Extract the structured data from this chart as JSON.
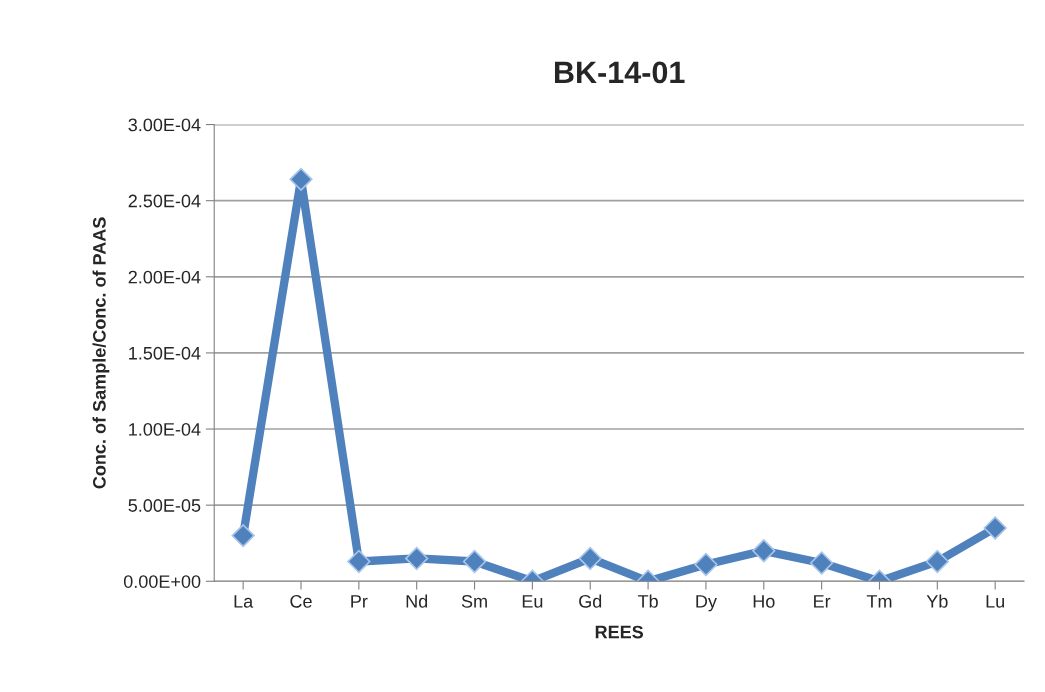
{
  "chart_data": {
    "type": "line",
    "title": "BK-14-01",
    "xlabel": "REES",
    "ylabel": "Conc. of Sample/Conc. of PAAS",
    "categories": [
      "La",
      "Ce",
      "Pr",
      "Nd",
      "Sm",
      "Eu",
      "Gd",
      "Tb",
      "Dy",
      "Ho",
      "Er",
      "Tm",
      "Yb",
      "Lu"
    ],
    "series": [
      {
        "color": "#4f81bd",
        "values": [
          3e-05,
          0.000264,
          1.3e-05,
          1.5e-05,
          1.3e-05,
          0,
          1.5e-05,
          0,
          1.1e-05,
          2e-05,
          1.2e-05,
          0,
          1.3e-05,
          3.5e-05
        ]
      }
    ],
    "ylim": [
      0,
      0.0003
    ],
    "yticks": [
      {
        "value": 0,
        "label": "0.00E+00"
      },
      {
        "value": 5e-05,
        "label": "5.00E-05"
      },
      {
        "value": 0.0001,
        "label": "1.00E-04"
      },
      {
        "value": 0.00015,
        "label": "1.50E-04"
      },
      {
        "value": 0.0002,
        "label": "2.00E-04"
      },
      {
        "value": 0.00025,
        "label": "2.50E-04"
      },
      {
        "value": 0.0003,
        "label": "3.00E-04"
      }
    ],
    "grid": "y",
    "marker": "diamond",
    "line_style": "solid"
  }
}
